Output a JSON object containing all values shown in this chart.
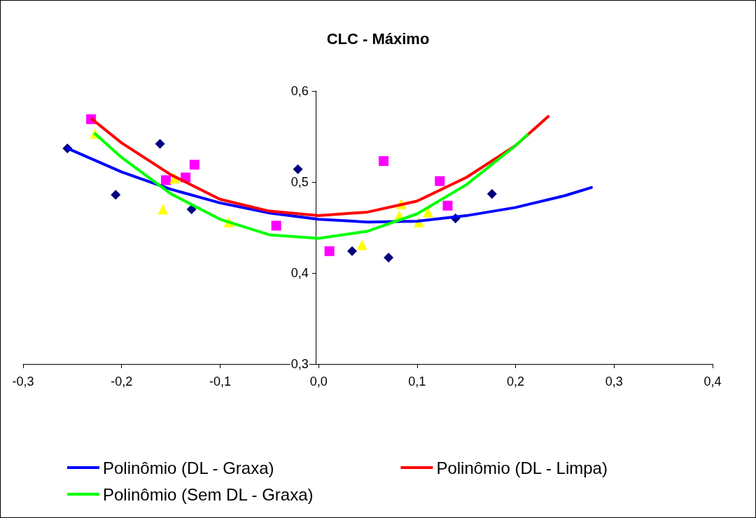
{
  "chart_data": {
    "type": "scatter",
    "title": "CLC - Máximo",
    "xlim": [
      -0.3,
      0.4
    ],
    "xticks": [
      {
        "value": -0.3,
        "label": "-0,3"
      },
      {
        "value": -0.2,
        "label": "-0,2"
      },
      {
        "value": -0.1,
        "label": "-0,1"
      },
      {
        "value": 0,
        "label": "0,0"
      },
      {
        "value": 0.1,
        "label": "0,1"
      },
      {
        "value": 0.2,
        "label": "0,2"
      },
      {
        "value": 0.3,
        "label": "0,3"
      },
      {
        "value": 0.4,
        "label": "0,4"
      }
    ],
    "ylim": [
      0.3,
      0.6
    ],
    "yticks": [
      {
        "value": 0.3,
        "label": "0,3"
      },
      {
        "value": 0.4,
        "label": "0,4"
      },
      {
        "value": 0.5,
        "label": "0,5"
      },
      {
        "value": 0.6,
        "label": "0,6"
      }
    ],
    "grid": false,
    "legend": "bottom",
    "series": [
      {
        "marker": "diamond",
        "color": "#000080",
        "x": [
          -0.255,
          -0.206,
          -0.161,
          -0.129,
          -0.021,
          0.034,
          0.071,
          0.139,
          0.176
        ],
        "values": [
          0.537,
          0.486,
          0.542,
          0.47,
          0.514,
          0.424,
          0.417,
          0.46,
          0.487
        ]
      },
      {
        "marker": "square",
        "color": "#ff00ff",
        "x": [
          -0.231,
          -0.155,
          -0.135,
          -0.126,
          -0.043,
          0.011,
          0.066,
          0.123,
          0.131
        ],
        "values": [
          0.569,
          0.502,
          0.505,
          0.519,
          0.452,
          0.424,
          0.523,
          0.501,
          0.474
        ]
      },
      {
        "marker": "triangle",
        "color": "#ffff00",
        "x": [
          -0.227,
          -0.158,
          -0.146,
          -0.091,
          0.044,
          0.084,
          0.082,
          0.102,
          0.111
        ],
        "values": [
          0.553,
          0.47,
          0.504,
          0.456,
          0.431,
          0.476,
          0.463,
          0.456,
          0.467
        ]
      },
      {
        "type": "line",
        "name": "Polinômio (DL - Graxa)",
        "color": "#0000ff",
        "marker": "none",
        "x": [
          -0.255,
          -0.2,
          -0.15,
          -0.1,
          -0.05,
          0,
          0.05,
          0.1,
          0.15,
          0.2,
          0.25,
          0.277
        ],
        "values": [
          0.537,
          0.511,
          0.492,
          0.477,
          0.466,
          0.459,
          0.456,
          0.457,
          0.463,
          0.472,
          0.485,
          0.494
        ]
      },
      {
        "type": "line",
        "name": "Polinômio (DL - Limpa)",
        "color": "#ff0000",
        "marker": "none",
        "x": [
          -0.23,
          -0.2,
          -0.15,
          -0.1,
          -0.05,
          0,
          0.05,
          0.1,
          0.15,
          0.2,
          0.233
        ],
        "values": [
          0.569,
          0.543,
          0.508,
          0.481,
          0.468,
          0.463,
          0.467,
          0.479,
          0.505,
          0.54,
          0.572
        ]
      },
      {
        "type": "line",
        "name": "Polinômio (Sem DL - Graxa)",
        "color": "#00ff00",
        "marker": "none",
        "x": [
          -0.227,
          -0.2,
          -0.15,
          -0.1,
          -0.05,
          0,
          0.05,
          0.1,
          0.15,
          0.2,
          0.212
        ],
        "values": [
          0.553,
          0.527,
          0.487,
          0.459,
          0.442,
          0.438,
          0.446,
          0.465,
          0.497,
          0.54,
          0.552
        ]
      }
    ]
  }
}
